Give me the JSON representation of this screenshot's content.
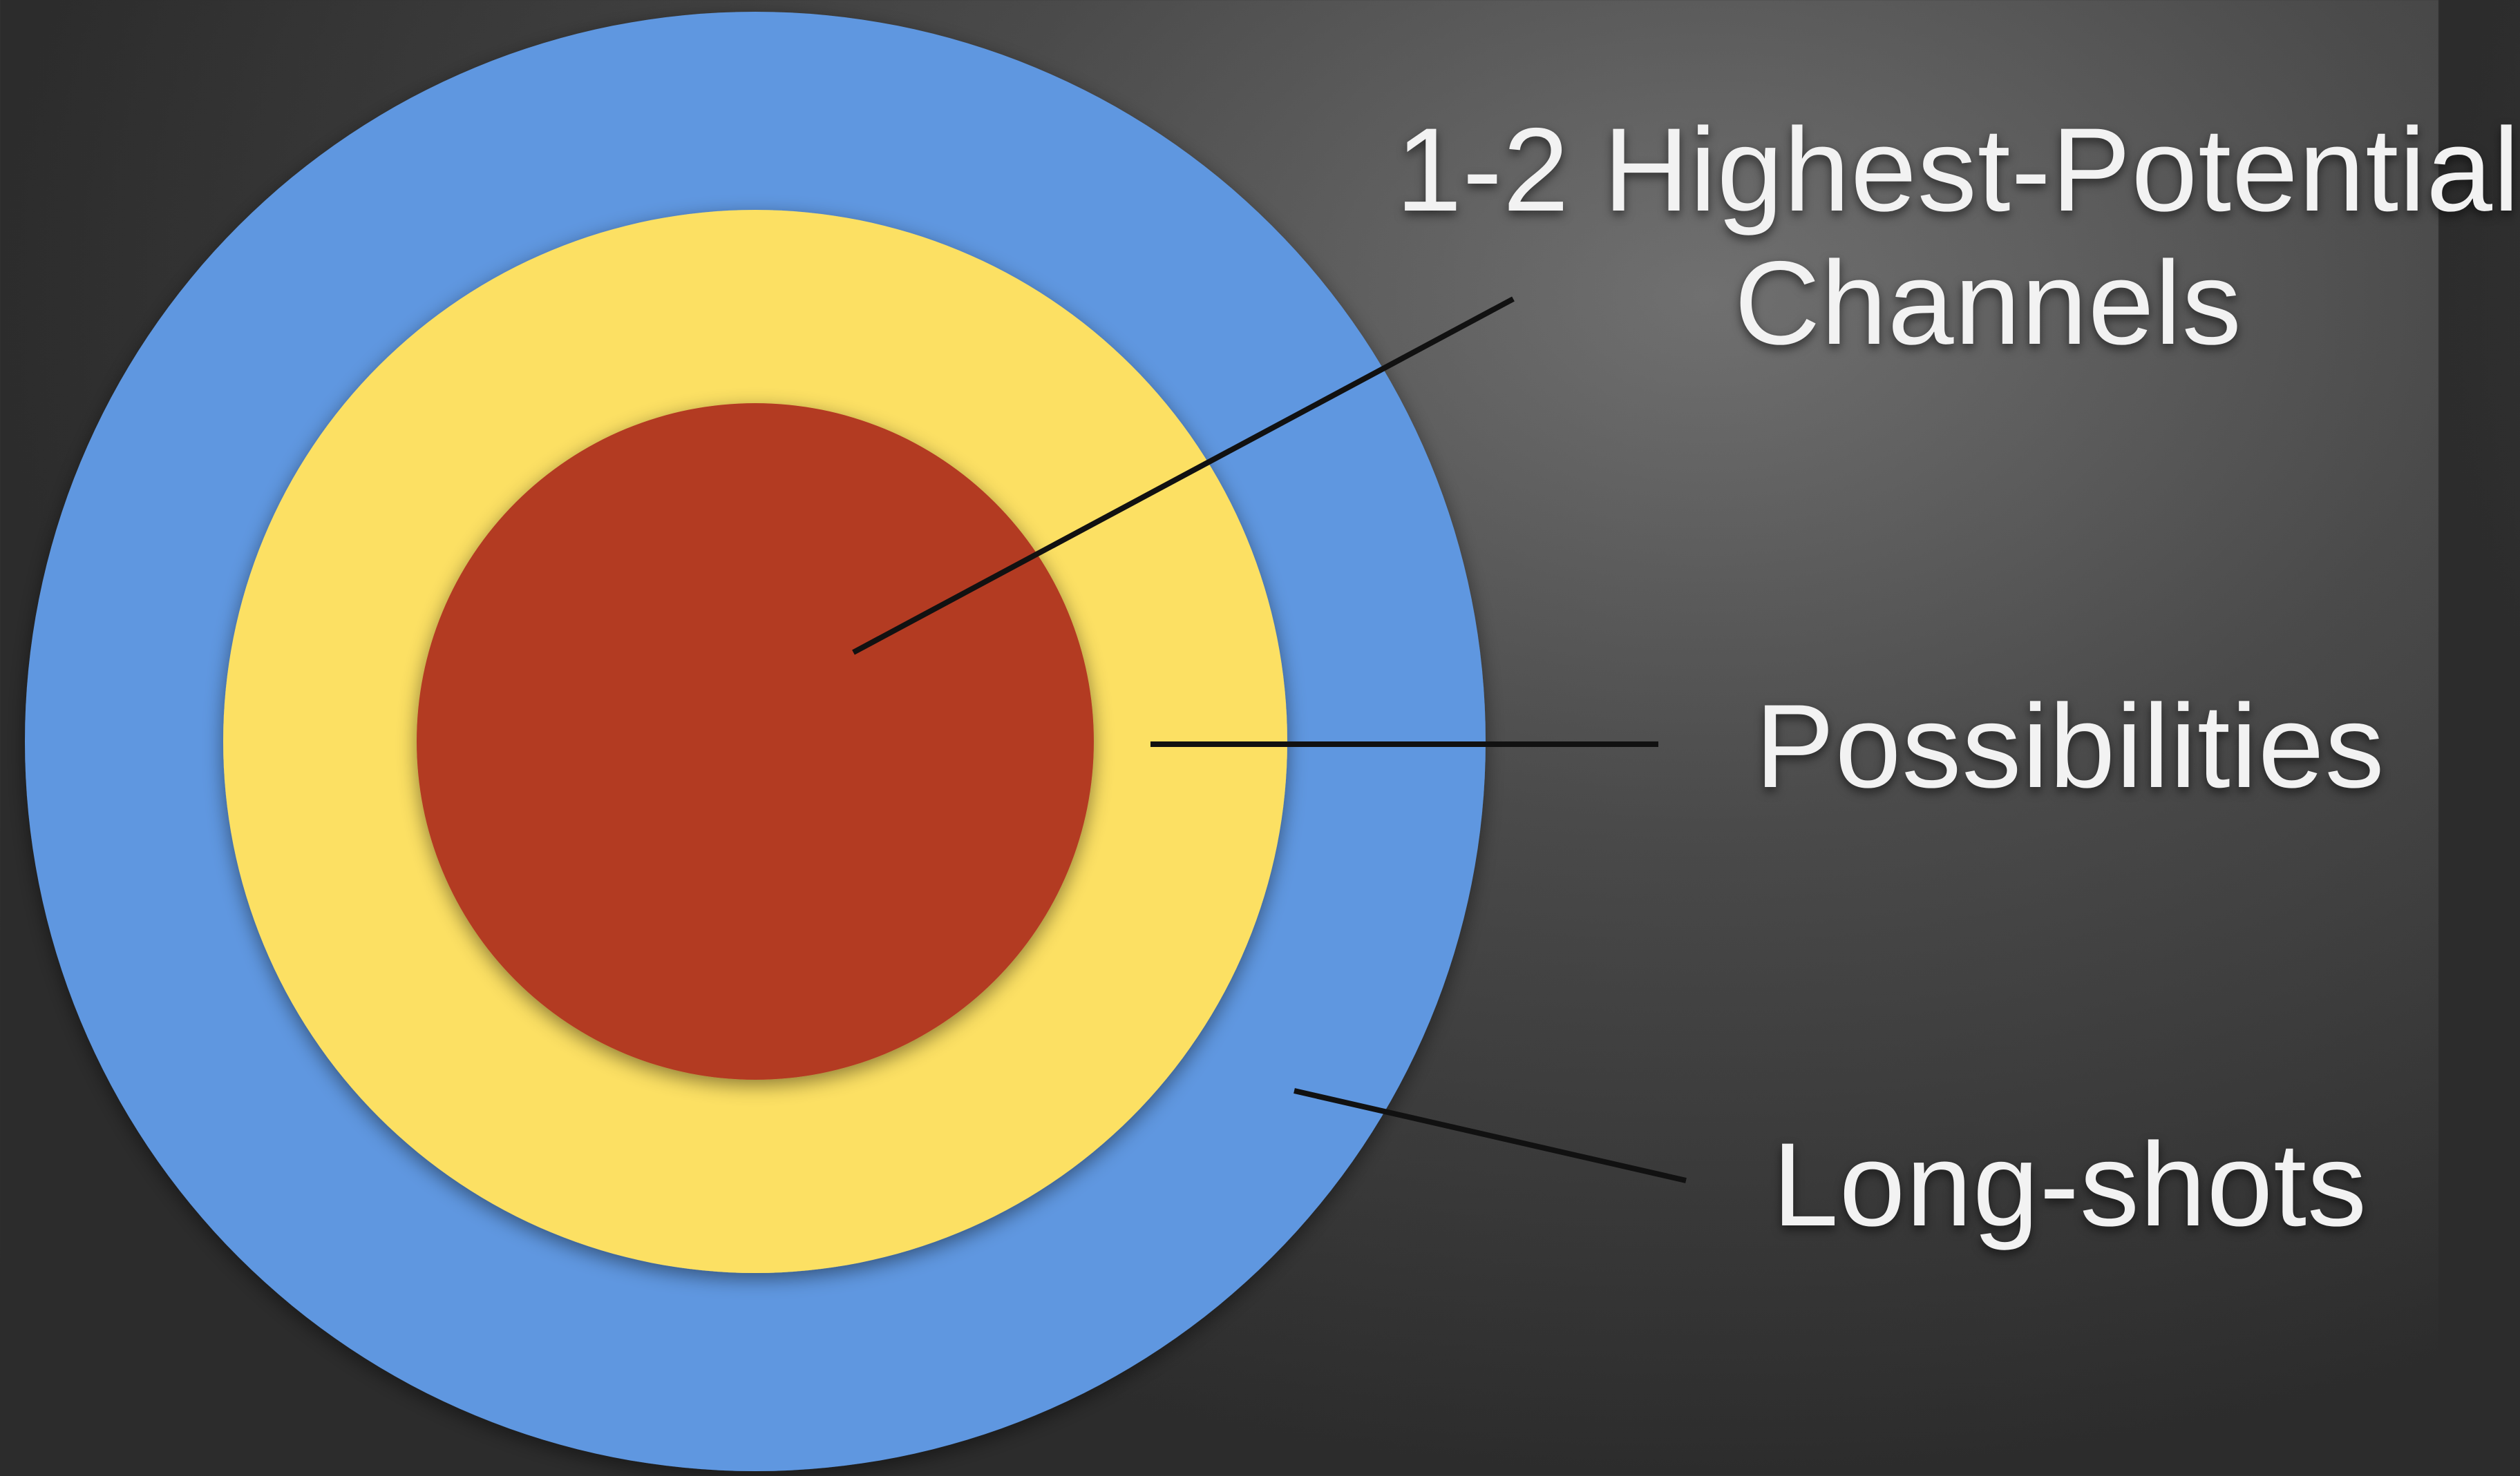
{
  "diagram": {
    "type": "concentric-target",
    "rings": [
      {
        "id": "outer",
        "color": "#5f97e0"
      },
      {
        "id": "middle",
        "color": "#fce063"
      },
      {
        "id": "inner",
        "color": "#b33a24"
      }
    ],
    "labels": {
      "inner_line1": "1-2 Highest-Potential",
      "inner_line2": "Channels",
      "middle": "Possibilities",
      "outer": "Long-shots"
    },
    "leader_line_color": "#111111"
  }
}
